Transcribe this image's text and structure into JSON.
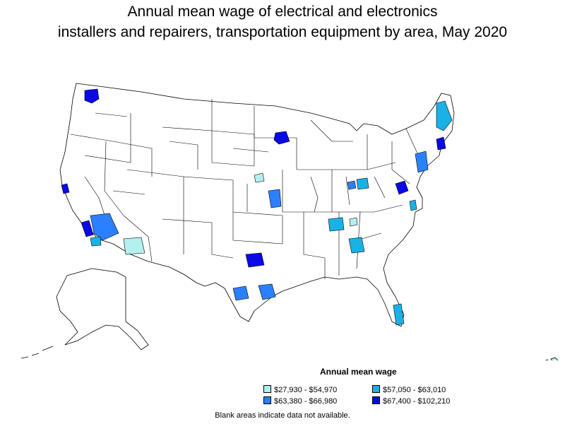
{
  "title_line1": "Annual mean wage of electrical and electronics",
  "title_line2": "installers and repairers, transportation equipment by area, May 2020",
  "legend": {
    "title": "Annual mean wage",
    "items": [
      {
        "label": "$27,930 - $54,970",
        "color": "#b3f0f0"
      },
      {
        "label": "$57,050 - $63,010",
        "color": "#1ab2e6"
      },
      {
        "label": "$63,380 - $66,980",
        "color": "#2b80ff"
      },
      {
        "label": "$67,400 - $102,210",
        "color": "#0a0ae6"
      }
    ]
  },
  "note": "Blank areas indicate data not available."
}
